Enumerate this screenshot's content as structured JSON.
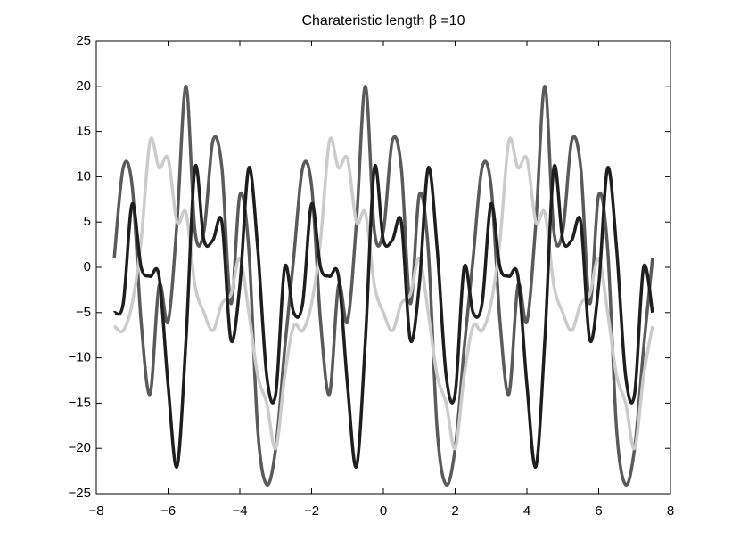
{
  "chart_data": {
    "type": "line",
    "title": "Charateristic length β =10",
    "x": [
      -7.5,
      -7.25,
      -7,
      -6.75,
      -6.5,
      -6.25,
      -6,
      -5.75,
      -5.5,
      -5.25,
      -5,
      -4.75,
      -4.5,
      -4.25,
      -4,
      -3.75,
      -3.5,
      -3.25,
      -3,
      -2.75,
      -2.5,
      -2.25,
      -2,
      -1.75,
      -1.5,
      -1.25,
      -1,
      -0.75,
      -0.5,
      -0.25,
      0,
      0.25,
      0.5,
      0.75,
      1,
      1.25,
      1.5,
      1.75,
      2,
      2.25,
      2.5,
      2.75,
      3,
      3.25,
      3.5,
      3.75,
      4,
      4.25,
      4.5,
      4.75,
      5,
      5.25,
      5.5,
      5.75,
      6,
      6.25,
      6.5,
      6.75,
      7,
      7.25,
      7.5
    ],
    "series": [
      {
        "color": "#5a5a5a",
        "values": [
          1,
          11,
          9,
          -6,
          -14,
          -2,
          -6,
          5,
          20,
          4,
          4,
          14,
          11,
          -4,
          8,
          2,
          -18,
          -24,
          -20,
          -9,
          1,
          11,
          9,
          -6,
          -14,
          -2,
          -6,
          5,
          20,
          4,
          4,
          14,
          11,
          -4,
          8,
          2,
          -18,
          -24,
          -20,
          -9,
          1,
          11,
          9,
          -6,
          -14,
          -2,
          -6,
          5,
          20,
          4,
          4,
          14,
          11,
          -4,
          8,
          2,
          -18,
          -24,
          -20,
          -9,
          1
        ]
      },
      {
        "color": "#cbcbcb",
        "values": [
          -6.5,
          -7,
          -4,
          3,
          14,
          11,
          12,
          5,
          6,
          -2,
          -5,
          -7,
          -4,
          -3,
          1,
          -5,
          -12,
          -15,
          -20,
          -12,
          -6.5,
          -7,
          -4,
          3,
          14,
          11,
          12,
          5,
          6,
          -2,
          -5,
          -7,
          -4,
          -3,
          1,
          -5,
          -12,
          -15,
          -20,
          -12,
          -6.5,
          -7,
          -4,
          3,
          14,
          11,
          12,
          5,
          6,
          -2,
          -5,
          -7,
          -4,
          -3,
          1,
          -5,
          -12,
          -15,
          -20,
          -12,
          -6.5
        ]
      },
      {
        "color": "#1e1e1e",
        "values": [
          -5,
          -4,
          7,
          0,
          -1,
          -1,
          -13,
          -22,
          -8,
          11,
          3,
          3,
          5,
          -8,
          -2,
          11,
          2,
          -12,
          -14,
          0,
          -5,
          -4,
          7,
          0,
          -1,
          -1,
          -13,
          -22,
          -8,
          11,
          3,
          3,
          5,
          -8,
          -2,
          11,
          2,
          -12,
          -14,
          0,
          -5,
          -4,
          7,
          0,
          -1,
          -1,
          -13,
          -22,
          -8,
          11,
          3,
          3,
          5,
          -8,
          -2,
          11,
          2,
          -12,
          -14,
          0,
          -5
        ]
      }
    ],
    "xlim": [
      -8,
      8
    ],
    "xticks": [
      {
        "value": -8,
        "label": "−8"
      },
      {
        "value": -6,
        "label": "−6"
      },
      {
        "value": -4,
        "label": "−4"
      },
      {
        "value": -2,
        "label": "−2"
      },
      0,
      2,
      4,
      6,
      8
    ],
    "ylim": [
      -25,
      25
    ],
    "yticks": [
      {
        "value": -25,
        "label": "−25"
      },
      {
        "value": -20,
        "label": "−20"
      },
      {
        "value": -15,
        "label": "−15"
      },
      {
        "value": -10,
        "label": "−10"
      },
      {
        "value": -5,
        "label": "−5"
      },
      0,
      5,
      10,
      15,
      20,
      25
    ],
    "grid": false
  }
}
